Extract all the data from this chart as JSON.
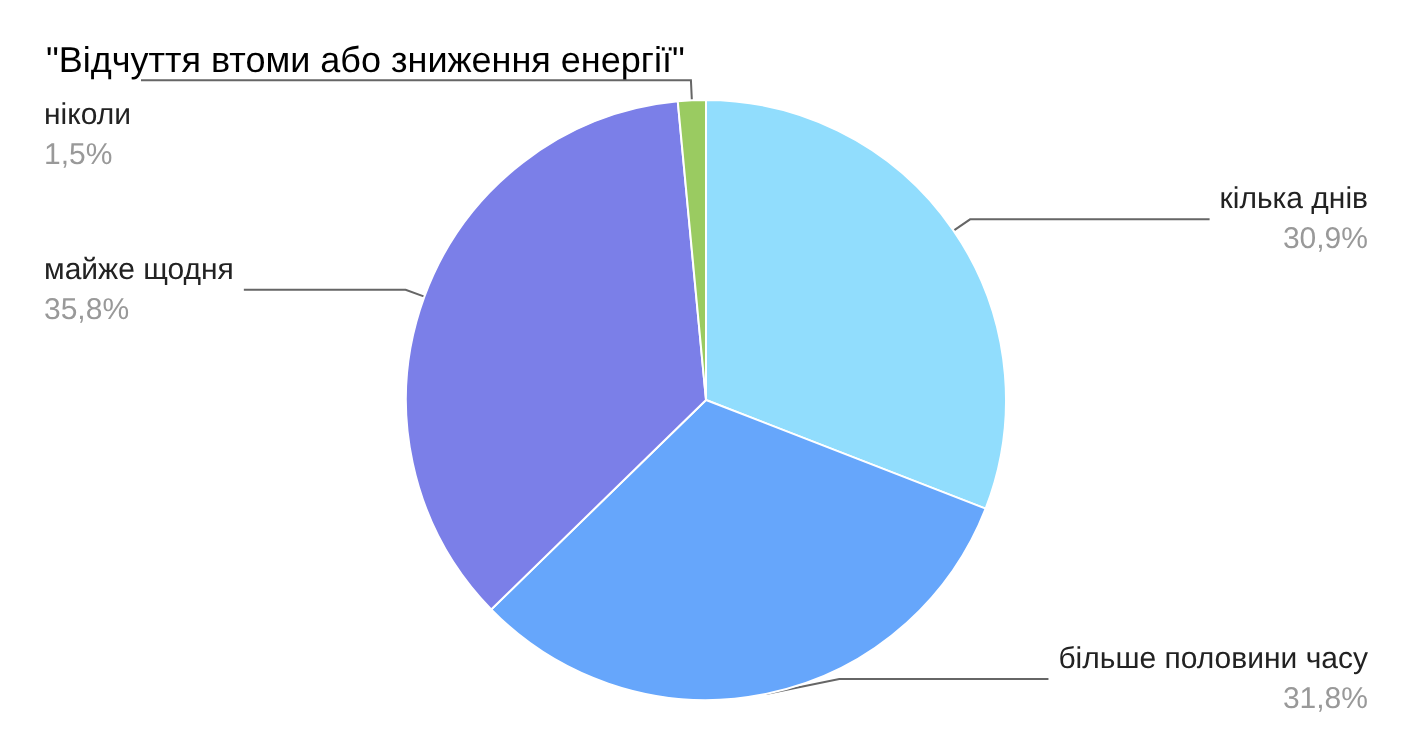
{
  "chart_data": {
    "type": "pie",
    "title": "\"Відчуття втоми або зниження енергії\"",
    "categories": [
      "кілька днів",
      "більше половини часу",
      "майже щодня",
      "ніколи"
    ],
    "values": [
      30.9,
      31.8,
      35.8,
      1.5
    ],
    "colors": [
      "#91ddfd",
      "#66a6fb",
      "#7b7fe8",
      "#9acb61"
    ],
    "value_labels": [
      "30,9%",
      "31,8%",
      "35,8%",
      "1,5%"
    ],
    "legend": false
  }
}
